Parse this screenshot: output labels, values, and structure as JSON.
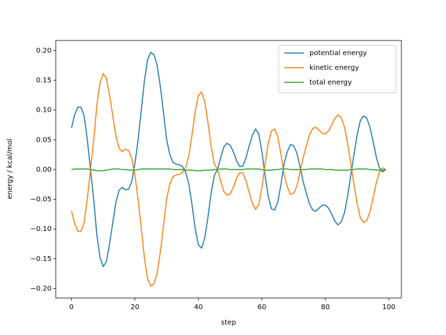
{
  "chart_data": {
    "type": "line",
    "xlabel": "step",
    "ylabel": "energy / kcal/mol",
    "x": [
      0,
      1,
      2,
      3,
      4,
      5,
      6,
      7,
      8,
      9,
      10,
      11,
      12,
      13,
      14,
      15,
      16,
      17,
      18,
      19,
      20,
      21,
      22,
      23,
      24,
      25,
      26,
      27,
      28,
      29,
      30,
      31,
      32,
      33,
      34,
      35,
      36,
      37,
      38,
      39,
      40,
      41,
      42,
      43,
      44,
      45,
      46,
      47,
      48,
      49,
      50,
      51,
      52,
      53,
      54,
      55,
      56,
      57,
      58,
      59,
      60,
      61,
      62,
      63,
      64,
      65,
      66,
      67,
      68,
      69,
      70,
      71,
      72,
      73,
      74,
      75,
      76,
      77,
      78,
      79,
      80,
      81,
      82,
      83,
      84,
      85,
      86,
      87,
      88,
      89,
      90,
      91,
      92,
      93,
      94,
      95,
      96,
      97,
      98,
      99
    ],
    "series": [
      {
        "name": "potential energy",
        "color": "#1f77b4",
        "values": [
          0.07,
          0.092,
          0.105,
          0.105,
          0.09,
          0.05,
          0.0,
          -0.05,
          -0.11,
          -0.148,
          -0.163,
          -0.155,
          -0.125,
          -0.09,
          -0.055,
          -0.035,
          -0.03,
          -0.034,
          -0.033,
          -0.02,
          0.01,
          0.05,
          0.1,
          0.15,
          0.185,
          0.197,
          0.193,
          0.175,
          0.14,
          0.095,
          0.05,
          0.025,
          0.012,
          0.009,
          0.008,
          0.005,
          -0.005,
          -0.025,
          -0.06,
          -0.1,
          -0.127,
          -0.132,
          -0.115,
          -0.08,
          -0.04,
          -0.01,
          0.0,
          0.02,
          0.038,
          0.044,
          0.041,
          0.03,
          0.015,
          0.005,
          0.006,
          0.02,
          0.04,
          0.058,
          0.068,
          0.06,
          0.03,
          -0.01,
          -0.045,
          -0.066,
          -0.068,
          -0.055,
          -0.025,
          0.01,
          0.03,
          0.042,
          0.04,
          0.028,
          0.005,
          -0.02,
          -0.04,
          -0.058,
          -0.068,
          -0.07,
          -0.065,
          -0.06,
          -0.06,
          -0.065,
          -0.075,
          -0.087,
          -0.093,
          -0.088,
          -0.073,
          -0.045,
          -0.01,
          0.025,
          0.058,
          0.082,
          0.09,
          0.087,
          0.072,
          0.048,
          0.022,
          0.003,
          -0.004,
          0.0
        ]
      },
      {
        "name": "kinetic energy",
        "color": "#ff7f0e",
        "values": [
          -0.07,
          -0.091,
          -0.104,
          -0.104,
          -0.089,
          -0.049,
          0.0,
          0.049,
          0.108,
          0.146,
          0.161,
          0.154,
          0.125,
          0.091,
          0.056,
          0.036,
          0.03,
          0.034,
          0.032,
          0.019,
          -0.01,
          -0.05,
          -0.099,
          -0.149,
          -0.184,
          -0.196,
          -0.192,
          -0.174,
          -0.139,
          -0.094,
          -0.049,
          -0.024,
          -0.012,
          -0.009,
          -0.008,
          -0.005,
          0.004,
          0.024,
          0.059,
          0.098,
          0.125,
          0.13,
          0.114,
          0.079,
          0.039,
          0.01,
          0.0,
          -0.019,
          -0.037,
          -0.043,
          -0.041,
          -0.03,
          -0.015,
          -0.005,
          -0.006,
          -0.019,
          -0.039,
          -0.057,
          -0.067,
          -0.059,
          -0.03,
          0.009,
          0.044,
          0.065,
          0.068,
          0.055,
          0.026,
          -0.009,
          -0.029,
          -0.042,
          -0.04,
          -0.028,
          -0.005,
          0.02,
          0.04,
          0.059,
          0.069,
          0.071,
          0.066,
          0.061,
          0.06,
          0.065,
          0.075,
          0.086,
          0.092,
          0.087,
          0.072,
          0.044,
          0.01,
          -0.025,
          -0.057,
          -0.081,
          -0.089,
          -0.086,
          -0.072,
          -0.048,
          -0.023,
          -0.004,
          0.003,
          0.0
        ]
      },
      {
        "name": "total energy",
        "color": "#2ca02c",
        "values": [
          0.0,
          0.001,
          0.001,
          0.001,
          0.001,
          0.001,
          0.0,
          -0.001,
          -0.002,
          -0.002,
          -0.002,
          -0.001,
          0.0,
          0.001,
          0.001,
          0.001,
          0.0,
          0.0,
          -0.001,
          -0.001,
          -0.001,
          0.0,
          0.001,
          0.001,
          0.001,
          0.001,
          0.001,
          0.001,
          0.001,
          0.001,
          0.001,
          0.001,
          0.0,
          0.0,
          0.0,
          0.0,
          -0.001,
          -0.001,
          -0.001,
          -0.002,
          -0.002,
          -0.002,
          -0.001,
          -0.001,
          -0.001,
          0.0,
          0.0,
          0.001,
          0.001,
          0.001,
          0.0,
          0.0,
          0.0,
          0.0,
          0.0,
          0.001,
          0.001,
          0.001,
          0.001,
          0.001,
          0.0,
          -0.001,
          -0.001,
          -0.001,
          0.0,
          0.0,
          0.001,
          0.001,
          0.001,
          0.0,
          0.0,
          0.0,
          0.0,
          0.0,
          0.0,
          0.001,
          0.001,
          0.001,
          0.001,
          0.001,
          0.0,
          0.0,
          0.0,
          -0.001,
          -0.001,
          -0.001,
          -0.001,
          -0.001,
          0.0,
          0.0,
          0.001,
          0.001,
          0.001,
          0.001,
          0.0,
          0.0,
          -0.001,
          -0.001,
          -0.001,
          0.0
        ]
      }
    ],
    "xlim": [
      -4.95,
      103.95
    ],
    "xticks": [
      0,
      20,
      40,
      60,
      80,
      100
    ],
    "ylim": [
      -0.216,
      0.217
    ],
    "yticks": [
      {
        "value": -0.2,
        "label": "−0.20"
      },
      {
        "value": -0.15,
        "label": "−0.15"
      },
      {
        "value": -0.1,
        "label": "−0.10"
      },
      {
        "value": -0.05,
        "label": "−0.05"
      },
      {
        "value": 0,
        "label": "0.00"
      },
      {
        "value": 0.05,
        "label": "0.05"
      },
      {
        "value": 0.1,
        "label": "0.10"
      },
      {
        "value": 0.15,
        "label": "0.15"
      },
      {
        "value": 0.2,
        "label": "0.20"
      }
    ],
    "grid": false,
    "legend": "upper right"
  }
}
